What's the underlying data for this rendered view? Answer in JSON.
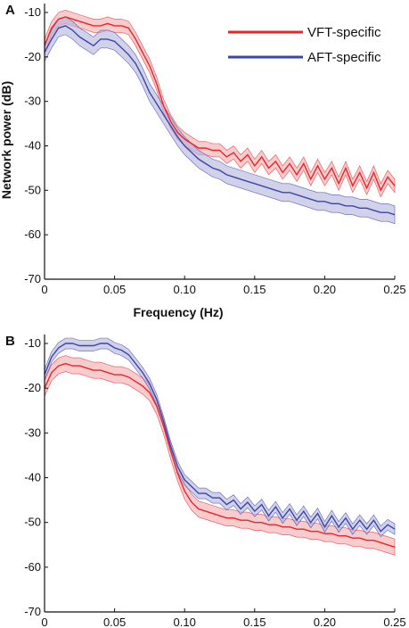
{
  "colors": {
    "vft": "#e8262a",
    "aft": "#3b46a8",
    "vft_band": "#f4a9ab",
    "aft_band": "#b2b2dc",
    "axis": "#111111"
  },
  "chart_data": [
    {
      "panel_label": "A",
      "type": "line",
      "xlabel": "Frequency (Hz)",
      "ylabel": "Network power (dB)",
      "xlim": [
        0,
        0.25
      ],
      "ylim": [
        -70,
        -8
      ],
      "xticks": [
        "0",
        "0.05",
        "0.10",
        "0.15",
        "0.20",
        "0.25"
      ],
      "yticks": [
        "-10",
        "-20",
        "-30",
        "-40",
        "-50",
        "-60",
        "-70"
      ],
      "grid": false,
      "legend": "top-right",
      "x": [
        0,
        0.005,
        0.01,
        0.015,
        0.02,
        0.025,
        0.03,
        0.035,
        0.04,
        0.045,
        0.05,
        0.055,
        0.06,
        0.065,
        0.07,
        0.075,
        0.08,
        0.085,
        0.09,
        0.095,
        0.1,
        0.105,
        0.11,
        0.115,
        0.12,
        0.125,
        0.13,
        0.135,
        0.14,
        0.145,
        0.15,
        0.155,
        0.16,
        0.165,
        0.17,
        0.175,
        0.18,
        0.185,
        0.19,
        0.195,
        0.2,
        0.205,
        0.21,
        0.215,
        0.22,
        0.225,
        0.23,
        0.235,
        0.24,
        0.245,
        0.25
      ],
      "series": [
        {
          "name": "VFT-specific",
          "values": [
            -17.5,
            -13.5,
            -11.5,
            -11,
            -11.5,
            -12,
            -12.5,
            -13,
            -13,
            -12.5,
            -13,
            -13,
            -13.5,
            -16,
            -19,
            -22,
            -26,
            -31,
            -34.5,
            -37,
            -38.5,
            -39.5,
            -40.5,
            -40.5,
            -41,
            -41,
            -42.5,
            -41.5,
            -43.5,
            -42,
            -44.5,
            -42.5,
            -45,
            -43.5,
            -46,
            -44,
            -46.5,
            -44,
            -47.5,
            -44.5,
            -47.5,
            -45,
            -48.5,
            -45,
            -49,
            -46,
            -49.5,
            -46,
            -50,
            -47,
            -49
          ],
          "band": 1.5
        },
        {
          "name": "AFT-specific",
          "values": [
            -19,
            -16,
            -13.5,
            -13,
            -14,
            -15.5,
            -16.5,
            -17.5,
            -16,
            -16,
            -16.5,
            -18,
            -19.5,
            -21.5,
            -24.5,
            -28,
            -30.5,
            -33,
            -35.5,
            -38,
            -40,
            -41.5,
            -43,
            -44,
            -45,
            -45.5,
            -46.5,
            -47,
            -47.5,
            -48,
            -48.5,
            -49,
            -49.5,
            -50,
            -50.5,
            -50.5,
            -51,
            -51.5,
            -52,
            -52.5,
            -52.5,
            -53,
            -53,
            -53.5,
            -53.5,
            -54,
            -54,
            -54.5,
            -55,
            -55,
            -55.5
          ],
          "band": 2.0
        }
      ]
    },
    {
      "panel_label": "B",
      "type": "line",
      "xlabel": "",
      "ylabel": "",
      "xlim": [
        0,
        0.25
      ],
      "ylim": [
        -70,
        -8
      ],
      "xticks": [
        "0",
        "0.05",
        "0.10",
        "0.15",
        "0.20",
        "0.25"
      ],
      "yticks": [
        "-10",
        "-20",
        "-30",
        "-40",
        "-50",
        "-60",
        "-70"
      ],
      "grid": false,
      "x": [
        0,
        0.005,
        0.01,
        0.015,
        0.02,
        0.025,
        0.03,
        0.035,
        0.04,
        0.045,
        0.05,
        0.055,
        0.06,
        0.065,
        0.07,
        0.075,
        0.08,
        0.085,
        0.09,
        0.095,
        0.1,
        0.105,
        0.11,
        0.115,
        0.12,
        0.125,
        0.13,
        0.135,
        0.14,
        0.145,
        0.15,
        0.155,
        0.16,
        0.165,
        0.17,
        0.175,
        0.18,
        0.185,
        0.19,
        0.195,
        0.2,
        0.205,
        0.21,
        0.215,
        0.22,
        0.225,
        0.23,
        0.235,
        0.24,
        0.245,
        0.25
      ],
      "series": [
        {
          "name": "VFT-specific",
          "values": [
            -20,
            -16.5,
            -15,
            -14.5,
            -15,
            -15,
            -15.5,
            -16,
            -16,
            -16.5,
            -17,
            -17,
            -17.5,
            -18.5,
            -19.5,
            -21,
            -24,
            -28.5,
            -34,
            -39,
            -43,
            -45.5,
            -47,
            -47.5,
            -48,
            -48.5,
            -49,
            -49,
            -49.5,
            -49.5,
            -50,
            -50,
            -50.5,
            -50.5,
            -51,
            -51,
            -51.5,
            -51.5,
            -52,
            -52,
            -52.5,
            -52.5,
            -53,
            -53,
            -53.5,
            -53.5,
            -54,
            -54,
            -54.5,
            -55,
            -55.5
          ],
          "band": 1.8
        },
        {
          "name": "AFT-specific",
          "values": [
            -17,
            -13,
            -11,
            -10,
            -10,
            -10.5,
            -10.5,
            -10.5,
            -10,
            -10,
            -11,
            -11.5,
            -12.5,
            -14.5,
            -16.5,
            -19,
            -22.5,
            -27.5,
            -33,
            -37.5,
            -40.5,
            -42,
            -43.5,
            -43.5,
            -44.5,
            -44.5,
            -46,
            -45,
            -47,
            -45.5,
            -47.5,
            -46,
            -48.5,
            -46.5,
            -49,
            -47,
            -49.5,
            -47.5,
            -50,
            -48,
            -51,
            -48.5,
            -51,
            -49,
            -51.5,
            -49.5,
            -51.5,
            -49.5,
            -52,
            -50.5,
            -51.5
          ],
          "band": 1.2
        }
      ]
    }
  ]
}
